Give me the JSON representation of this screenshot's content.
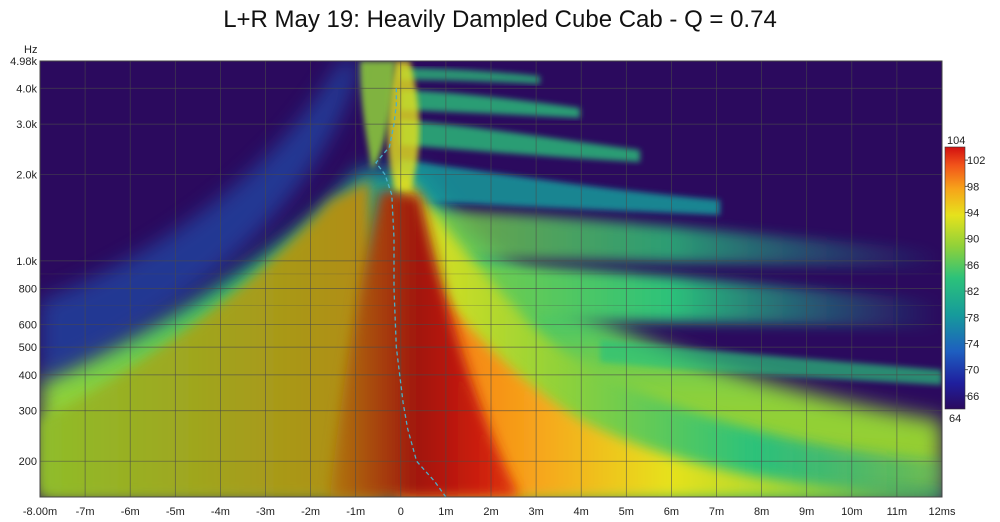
{
  "chart_data": {
    "type": "heatmap",
    "title": "L+R May 19: Heavily Dampled Cube Cab - Q = 0.74",
    "y_unit_label": "Hz",
    "x_unit_label": "ms",
    "x_ticks": [
      {
        "value": -8,
        "label": "-8.00m"
      },
      {
        "value": -7,
        "label": "-7m"
      },
      {
        "value": -6,
        "label": "-6m"
      },
      {
        "value": -5,
        "label": "-5m"
      },
      {
        "value": -4,
        "label": "-4m"
      },
      {
        "value": -3,
        "label": "-3m"
      },
      {
        "value": -2,
        "label": "-2m"
      },
      {
        "value": -1,
        "label": "-1m"
      },
      {
        "value": 0,
        "label": "0"
      },
      {
        "value": 1,
        "label": "1m"
      },
      {
        "value": 2,
        "label": "2m"
      },
      {
        "value": 3,
        "label": "3m"
      },
      {
        "value": 4,
        "label": "4m"
      },
      {
        "value": 5,
        "label": "5m"
      },
      {
        "value": 6,
        "label": "6m"
      },
      {
        "value": 7,
        "label": "7m"
      },
      {
        "value": 8,
        "label": "8m"
      },
      {
        "value": 9,
        "label": "9m"
      },
      {
        "value": 10,
        "label": "10m"
      },
      {
        "value": 11,
        "label": "11m"
      },
      {
        "value": 12,
        "label": "12ms"
      }
    ],
    "y_ticks": [
      {
        "value": 200,
        "label": "200"
      },
      {
        "value": 300,
        "label": "300"
      },
      {
        "value": 400,
        "label": "400"
      },
      {
        "value": 500,
        "label": "500"
      },
      {
        "value": 600,
        "label": "600"
      },
      {
        "value": 800,
        "label": "800"
      },
      {
        "value": 1000,
        "label": "1.0k"
      },
      {
        "value": 2000,
        "label": "2.0k"
      },
      {
        "value": 3000,
        "label": "3.0k"
      },
      {
        "value": 4000,
        "label": "4.0k"
      },
      {
        "value": 4980,
        "label": "4.98k"
      }
    ],
    "xlim": [
      -8,
      12
    ],
    "ylim": [
      150,
      4980
    ],
    "y_scale": "log",
    "grid": true,
    "colorbar": {
      "range": [
        64,
        104
      ],
      "max_label": "104",
      "min_label": "64",
      "ticks": [
        "102",
        "98",
        "94",
        "90",
        "86",
        "82",
        "78",
        "74",
        "70",
        "66"
      ],
      "tick_values": [
        102,
        98,
        94,
        90,
        86,
        82,
        78,
        74,
        70,
        66
      ],
      "colors": [
        "#2b0a5e",
        "#1f1f9e",
        "#1e5fc0",
        "#169b9b",
        "#2cc27a",
        "#8fd13a",
        "#e6e21c",
        "#f7a41a",
        "#f2541a",
        "#d21010"
      ]
    },
    "peak_curve": {
      "freq_hz": [
        150,
        170,
        200,
        260,
        320,
        500,
        800,
        1200,
        1700,
        2000,
        2200,
        2500,
        3000,
        3500,
        4000
      ],
      "time_ms": [
        1.0,
        0.75,
        0.35,
        0.15,
        0.05,
        -0.1,
        -0.15,
        -0.15,
        -0.2,
        -0.35,
        -0.55,
        -0.25,
        -0.15,
        -0.1,
        -0.1
      ]
    },
    "colors": {
      "background": "#2b0a5e",
      "grid": "#555555",
      "peak_curve": "#4ab0c8"
    }
  }
}
